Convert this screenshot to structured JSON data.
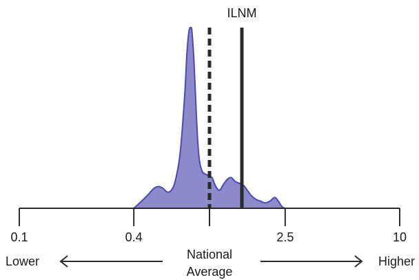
{
  "chart_data": {
    "type": "area",
    "title": "",
    "xlabel": "",
    "ylabel": "",
    "x_scale": "log",
    "xlim": [
      0.1,
      10
    ],
    "ylim": [
      0,
      1
    ],
    "grid": false,
    "legend": "none",
    "colors": {
      "fill": "#8c8acb",
      "stroke": "#4b48b0",
      "axis": "#2a2a2a"
    },
    "ticks": [
      {
        "value": 0.1,
        "label": "0.1"
      },
      {
        "value": 0.4,
        "label": "0.4"
      },
      {
        "value": 1.0,
        "label": ""
      },
      {
        "value": 2.5,
        "label": "2.5"
      },
      {
        "value": 10,
        "label": "10"
      }
    ],
    "density": {
      "x": [
        0.4,
        0.42,
        0.45,
        0.48,
        0.51,
        0.54,
        0.57,
        0.6,
        0.63,
        0.66,
        0.7,
        0.74,
        0.76,
        0.78,
        0.8,
        0.81,
        0.83,
        0.85,
        0.87,
        0.89,
        0.92,
        0.95,
        0.99,
        1.03,
        1.08,
        1.13,
        1.18,
        1.24,
        1.3,
        1.36,
        1.42,
        1.5,
        1.58,
        1.66,
        1.75,
        1.85,
        1.96,
        2.08,
        2.2,
        2.3,
        2.4,
        2.5
      ],
      "y": [
        0.0,
        0.02,
        0.05,
        0.08,
        0.11,
        0.12,
        0.11,
        0.09,
        0.1,
        0.15,
        0.3,
        0.62,
        0.85,
        0.98,
        1.0,
        0.97,
        0.8,
        0.55,
        0.35,
        0.25,
        0.2,
        0.19,
        0.18,
        0.17,
        0.12,
        0.1,
        0.13,
        0.16,
        0.17,
        0.15,
        0.14,
        0.13,
        0.1,
        0.07,
        0.05,
        0.04,
        0.03,
        0.04,
        0.06,
        0.04,
        0.01,
        0.0
      ]
    },
    "reference_lines": [
      {
        "name": "national-average-line",
        "x": 1.0,
        "style": "dashed"
      },
      {
        "name": "ilnm-line",
        "x": 1.48,
        "style": "solid",
        "label": "ILNM"
      }
    ],
    "center_label": [
      "National",
      "Average"
    ],
    "direction_labels": {
      "left": "Lower",
      "right": "Higher"
    }
  }
}
